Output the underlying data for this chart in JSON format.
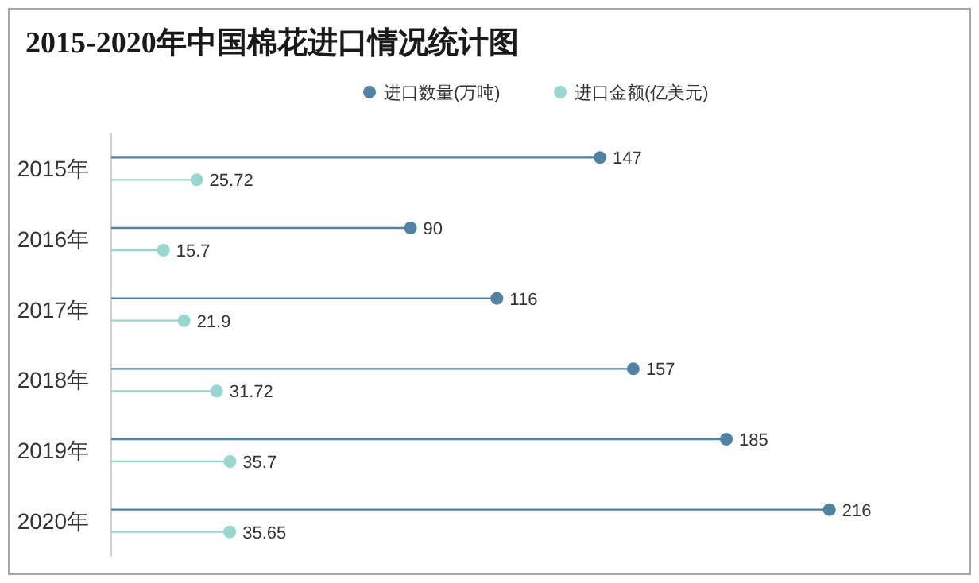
{
  "chart_data": {
    "type": "lollipop",
    "orientation": "horizontal",
    "title": "2015-2020年中国棉花进口情况统计图",
    "categories": [
      "2015年",
      "2016年",
      "2017年",
      "2018年",
      "2019年",
      "2020年"
    ],
    "series": [
      {
        "name": "进口数量(万吨)",
        "color": "#5182a3",
        "values": [
          147,
          90,
          116,
          157,
          185,
          216
        ]
      },
      {
        "name": "进口金额(亿美元)",
        "color": "#98d6cf",
        "values": [
          25.72,
          15.7,
          21.9,
          31.72,
          35.7,
          35.65
        ]
      }
    ],
    "tick_labels": "y",
    "data_labels": true,
    "legend": "top",
    "marker": "circle",
    "line_style": "solid",
    "grid": false
  }
}
